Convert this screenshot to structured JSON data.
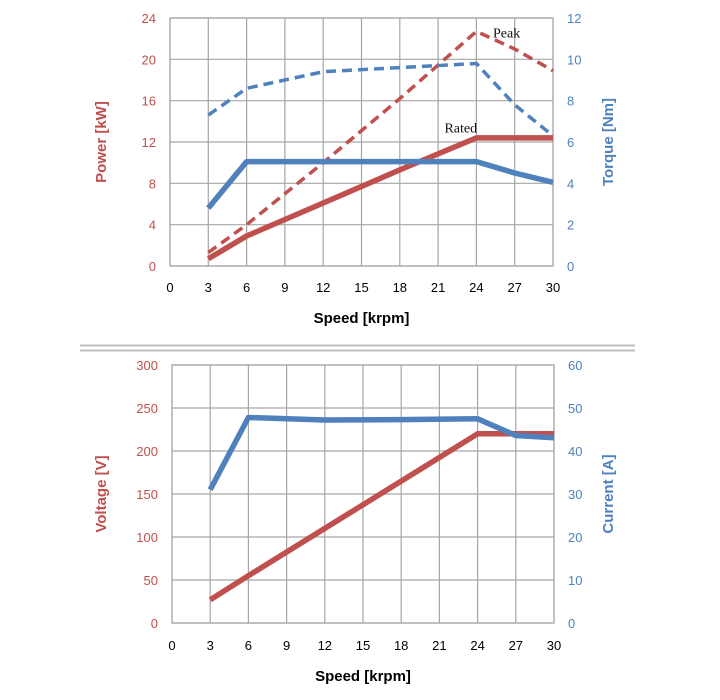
{
  "colors": {
    "red": "#c0504d",
    "blue": "#4f81bd",
    "grid": "#a6a6a6",
    "divider": "#bfbfbf"
  },
  "chart_data": [
    {
      "type": "line",
      "xlabel": "Speed [krpm]",
      "ylabel_left": "Power [kW]",
      "ylabel_right": "Torque [Nm]",
      "xlim": [
        0,
        30
      ],
      "xticks": [
        "0",
        "3",
        "6",
        "9",
        "12",
        "15",
        "18",
        "21",
        "24",
        "27",
        "30"
      ],
      "ylim_left": [
        0,
        24
      ],
      "yticks_left": [
        "0",
        "4",
        "8",
        "12",
        "16",
        "20",
        "24"
      ],
      "ylim_right": [
        0,
        12
      ],
      "yticks_right": [
        "0",
        "2",
        "4",
        "6",
        "8",
        "10",
        "12"
      ],
      "grid": true,
      "annotations": [
        {
          "text": "Peak",
          "x": 25.3,
          "y": 22.6
        },
        {
          "text": "Rated",
          "x": 21.5,
          "y": 13.4
        }
      ],
      "series": [
        {
          "axis": "left",
          "color": "#c0504d",
          "style": "solid",
          "x": [
            3,
            6,
            12,
            18,
            24,
            27,
            30
          ],
          "values": [
            0.7,
            2.9,
            6.1,
            9.3,
            12.4,
            12.4,
            12.4
          ]
        },
        {
          "axis": "left",
          "color": "#c0504d",
          "style": "dashed",
          "x": [
            3,
            6,
            12,
            18,
            24,
            27,
            30
          ],
          "values": [
            1.3,
            4.0,
            10.0,
            16.2,
            22.7,
            21.0,
            18.9
          ]
        },
        {
          "axis": "right",
          "color": "#4f81bd",
          "style": "solid",
          "x": [
            3,
            6,
            12,
            18,
            24,
            27,
            30
          ],
          "values": [
            2.8,
            5.05,
            5.05,
            5.05,
            5.05,
            4.5,
            4.05
          ]
        },
        {
          "axis": "right",
          "color": "#4f81bd",
          "style": "dashed",
          "x": [
            3,
            6,
            12,
            18,
            24,
            27,
            30
          ],
          "values": [
            7.3,
            8.6,
            9.4,
            9.6,
            9.8,
            7.8,
            6.3
          ]
        }
      ]
    },
    {
      "type": "line",
      "xlabel": "Speed [krpm]",
      "ylabel_left": "Voltage [V]",
      "ylabel_right": "Current [A]",
      "xlim": [
        0,
        30
      ],
      "xticks": [
        "0",
        "3",
        "6",
        "9",
        "12",
        "15",
        "18",
        "21",
        "24",
        "27",
        "30"
      ],
      "ylim_left": [
        0,
        300
      ],
      "yticks_left": [
        "0",
        "50",
        "100",
        "150",
        "200",
        "250",
        "300"
      ],
      "ylim_right": [
        0,
        60
      ],
      "yticks_right": [
        "0",
        "10",
        "20",
        "30",
        "40",
        "50",
        "60"
      ],
      "grid": true,
      "annotations": [],
      "series": [
        {
          "axis": "left",
          "color": "#c0504d",
          "style": "solid",
          "x": [
            3,
            6,
            12,
            18,
            24,
            27,
            30
          ],
          "values": [
            27,
            55,
            110,
            165,
            220,
            220,
            220
          ]
        },
        {
          "axis": "right",
          "color": "#4f81bd",
          "style": "solid",
          "x": [
            3,
            6,
            12,
            18,
            24,
            27,
            30
          ],
          "values": [
            31,
            47.8,
            47.2,
            47.3,
            47.5,
            43.6,
            43.1
          ]
        }
      ]
    }
  ]
}
